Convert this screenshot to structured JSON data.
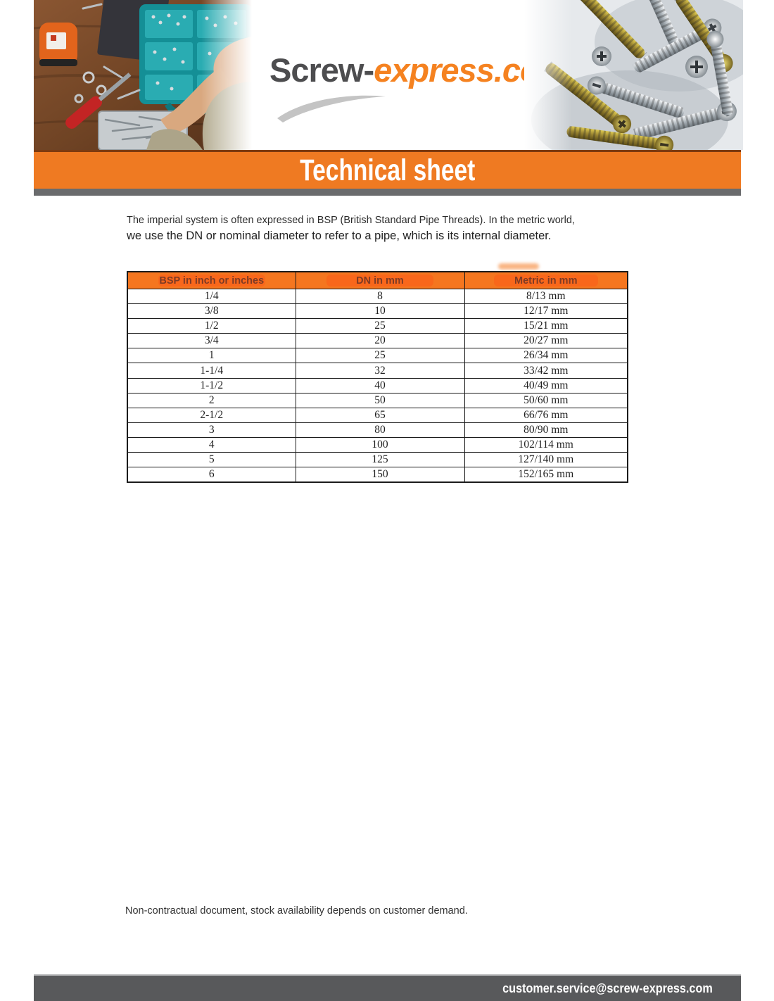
{
  "logo": {
    "part1": "Screw-",
    "part2": "express.com"
  },
  "banner_title": "Technical sheet",
  "intro_line1": "The imperial system is often expressed in BSP (British Standard Pipe Threads). In the metric world,",
  "intro_line2": "we use the DN or nominal diameter to refer to a pipe, which is its internal diameter.",
  "table": {
    "headers": [
      "BSP in inch or inches",
      "DN in mm",
      "Metric in mm"
    ],
    "rows": [
      [
        "1/4",
        "8",
        "8/13 mm"
      ],
      [
        "3/8",
        "10",
        "12/17 mm"
      ],
      [
        "1/2",
        "25",
        "15/21 mm"
      ],
      [
        "3/4",
        "20",
        "20/27 mm"
      ],
      [
        "1",
        "25",
        "26/34 mm"
      ],
      [
        "1-1/4",
        "32",
        "33/42 mm"
      ],
      [
        "1-1/2",
        "40",
        "40/49 mm"
      ],
      [
        "2",
        "50",
        "50/60 mm"
      ],
      [
        "2-1/2",
        "65",
        "66/76 mm"
      ],
      [
        "3",
        "80",
        "80/90 mm"
      ],
      [
        "4",
        "100",
        "102/114 mm"
      ],
      [
        "5",
        "125",
        "127/140 mm"
      ],
      [
        "6",
        "150",
        "152/165 mm"
      ]
    ]
  },
  "footer_note": "Non-contractual document, stock availability depends on customer demand.",
  "contact_email": "customer.service@screw-express.com",
  "colors": {
    "banner_orange": "#EF7A22",
    "table_header_orange": "#F5761F",
    "logo_orange": "#F58220",
    "logo_gray": "#4D4D4F",
    "strip_gray": "#6A6B6D",
    "footer_bar_gray": "#58595B"
  }
}
